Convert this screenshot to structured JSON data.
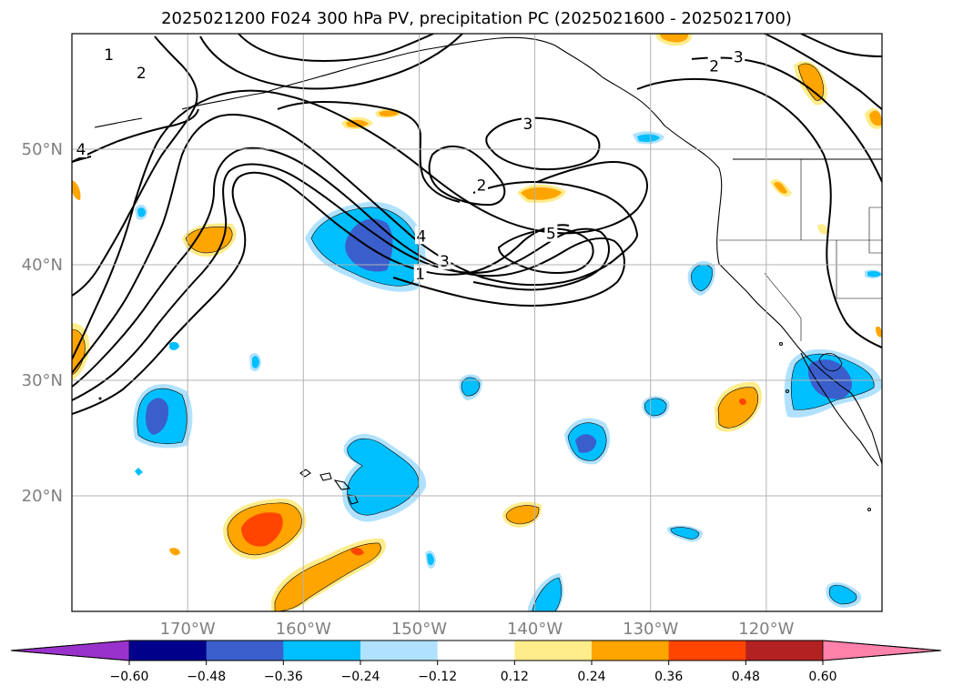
{
  "title": "2025021200 F024 300 hPa PV, precipitation PC (2025021600 - 2025021700)",
  "map": {
    "lon_range": [
      -180,
      -110
    ],
    "lat_range": [
      10,
      60
    ],
    "lat_ticks": [
      {
        "value": 50,
        "label": "50°N"
      },
      {
        "value": 40,
        "label": "40°N"
      },
      {
        "value": 30,
        "label": "30°N"
      },
      {
        "value": 20,
        "label": "20°N"
      }
    ],
    "lon_ticks": [
      {
        "value": -170,
        "label": "170°W"
      },
      {
        "value": -160,
        "label": "160°W"
      },
      {
        "value": -150,
        "label": "150°W"
      },
      {
        "value": -140,
        "label": "140°W"
      },
      {
        "value": -130,
        "label": "130°W"
      },
      {
        "value": -120,
        "label": "120°W"
      }
    ],
    "grid": true,
    "pv_contour_labels": [
      {
        "text": "1",
        "lon": -176.8,
        "lat": 58.2
      },
      {
        "text": "2",
        "lon": -174.0,
        "lat": 56.6
      },
      {
        "text": "3",
        "lon": -140.6,
        "lat": 52.2
      },
      {
        "text": "4",
        "lon": -187.1,
        "lat": 50.0
      },
      {
        "text": "2",
        "lon": -144.6,
        "lat": 46.9
      },
      {
        "text": "5",
        "lon": -138.6,
        "lat": 42.7
      },
      {
        "text": "4",
        "lon": -149.8,
        "lat": 42.5
      },
      {
        "text": "3",
        "lon": -147.8,
        "lat": 40.3
      },
      {
        "text": "1",
        "lon": -149.9,
        "lat": 39.2
      },
      {
        "text": "3",
        "lon": -122.4,
        "lat": 58.0
      },
      {
        "text": "2",
        "lon": -124.5,
        "lat": 57.2
      }
    ]
  },
  "colorbar": {
    "ticks": [
      "−0.60",
      "−0.48",
      "−0.36",
      "−0.24",
      "−0.12",
      "0.12",
      "0.24",
      "0.36",
      "0.48",
      "0.60"
    ],
    "colors": [
      "#9932cc",
      "#00008b",
      "#3a5fcd",
      "#00bfff",
      "#b0e2ff",
      "#ffffff",
      "#ffec8b",
      "#ffa500",
      "#ff4500",
      "#b22222",
      "#ff82ab"
    ]
  },
  "colors": {
    "strong_negative": "#3a5fcd",
    "negative": "#00bfff",
    "weak_negative": "#b0e2ff",
    "weak_positive": "#ffec8b",
    "positive": "#ffa500",
    "strong_positive": "#ff4500"
  }
}
